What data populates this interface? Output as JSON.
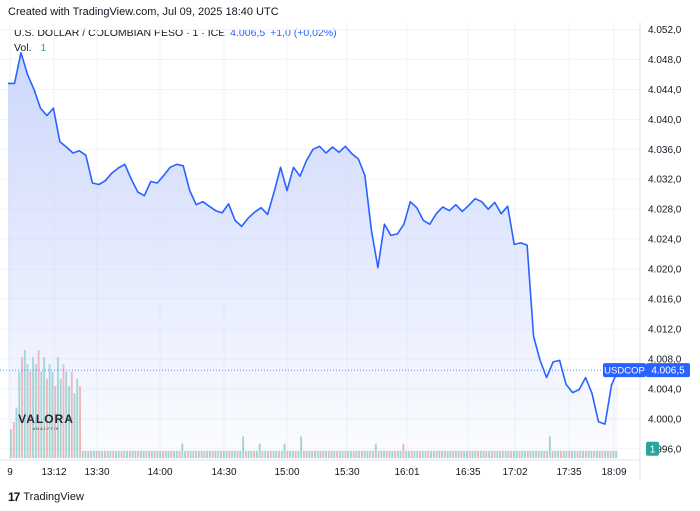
{
  "header": {
    "created": "Created with TradingView.com, Jul 09, 2025 18:40 UTC"
  },
  "legend": {
    "symbol": "U.S. DOLLAR / COLOMBIAN PESO · 1 · ICE",
    "value": "4.006,5",
    "change": "+1,0 (+0,02%)",
    "vol_label": "Vol.",
    "vol_value": "1"
  },
  "footer": {
    "brand": "TradingView"
  },
  "watermark": {
    "name": "VALORA",
    "tagline": "ANALYTIK"
  },
  "colors": {
    "line": "#2962ff",
    "volume_up": "#26a69a",
    "volume_down": "#ef5350",
    "area_top": "#c7d3fb"
  },
  "chart_data": {
    "type": "area",
    "symbol_label": "USDCOP",
    "last_price_label": "4.006,5",
    "volume_label": "1",
    "ylim": [
      3994.5,
      4053
    ],
    "y_ticks": [
      {
        "v": 4052,
        "label": "4.052,0"
      },
      {
        "v": 4048,
        "label": "4.048,0"
      },
      {
        "v": 4044,
        "label": "4.044,0"
      },
      {
        "v": 4040,
        "label": "4.040,0"
      },
      {
        "v": 4036,
        "label": "4.036,0"
      },
      {
        "v": 4032,
        "label": "4.032,0"
      },
      {
        "v": 4028,
        "label": "4.028,0"
      },
      {
        "v": 4024,
        "label": "4.024,0"
      },
      {
        "v": 4020,
        "label": "4.020,0"
      },
      {
        "v": 4016,
        "label": "4.016,0"
      },
      {
        "v": 4012,
        "label": "4.012,0"
      },
      {
        "v": 4008,
        "label": "4.008,0"
      },
      {
        "v": 4004,
        "label": "4.004,0"
      },
      {
        "v": 4000,
        "label": "4.000,0"
      },
      {
        "v": 3996,
        "label": "3.996,0"
      }
    ],
    "x_ticks": [
      "9",
      "13:12",
      "13:30",
      "14:00",
      "14:30",
      "15:00",
      "15:30",
      "16:01",
      "16:35",
      "17:02",
      "17:35",
      "18:09"
    ],
    "series": [
      {
        "values": [
          4044.8,
          4044.8,
          4048.9,
          4046,
          4044,
          4041.5,
          4040.5,
          4041.5,
          4037,
          4036.3,
          4035.5,
          4035.8,
          4035.2,
          4031.5,
          4031.3,
          4031.8,
          4032.8,
          4033.5,
          4034,
          4032,
          4030.3,
          4029.8,
          4031.7,
          4031.5,
          4032.5,
          4033.6,
          4034,
          4033.8,
          4030.5,
          4028.6,
          4029,
          4028.4,
          4027.8,
          4027.5,
          4028.7,
          4026.5,
          4025.7,
          4026.8,
          4027.6,
          4028.2,
          4027.3,
          4030.3,
          4033.6,
          4030.5,
          4033.6,
          4032.4,
          4034.5,
          4036,
          4036.4,
          4035.5,
          4036.3,
          4035.6,
          4036.4,
          4035.4,
          4034.7,
          4032.5,
          4025.2,
          4020.2,
          4026,
          4024.5,
          4024.7,
          4026,
          4029,
          4028.2,
          4026.5,
          4026,
          4027.4,
          4028.3,
          4027.8,
          4028.6,
          4027.7,
          4028.5,
          4029.4,
          4029,
          4028,
          4028.9,
          4027.4,
          4028.4,
          4023.3,
          4023.5,
          4023.2,
          4011,
          4007.8,
          4005.5,
          4007.6,
          4007.8,
          4004.6,
          4003.5,
          4003.9,
          4005.5,
          4003.4,
          3999.6,
          3999.3,
          4004.5,
          4006.5
        ]
      }
    ],
    "volume": {
      "max": 15,
      "values": [
        4,
        5,
        7,
        12,
        14,
        15,
        13,
        12,
        14,
        13,
        15,
        12,
        14,
        11,
        13,
        12,
        10,
        14,
        11,
        13,
        12,
        10,
        12,
        9,
        11,
        10,
        1,
        1,
        1,
        1,
        1,
        1,
        1,
        1,
        1,
        1,
        1,
        1,
        1,
        1,
        1,
        1,
        1,
        1,
        1,
        1,
        1,
        1,
        1,
        1,
        1,
        1,
        1,
        1,
        1,
        1,
        1,
        1,
        1,
        1,
        1,
        1,
        2,
        1,
        1,
        1,
        1,
        1,
        1,
        1,
        1,
        1,
        1,
        1,
        1,
        1,
        1,
        1,
        1,
        1,
        1,
        1,
        1,
        1,
        3,
        1,
        1,
        1,
        1,
        1,
        2,
        1,
        1,
        1,
        1,
        1,
        1,
        1,
        1,
        2,
        1,
        1,
        1,
        1,
        1,
        3,
        1,
        1,
        1,
        1,
        1,
        1,
        1,
        1,
        1,
        1,
        1,
        1,
        1,
        1,
        1,
        1,
        1,
        1,
        1,
        1,
        1,
        1,
        1,
        1,
        1,
        1,
        2,
        1,
        1,
        1,
        1,
        1,
        1,
        1,
        1,
        1,
        2,
        1,
        1,
        1,
        1,
        1,
        1,
        1,
        1,
        1,
        1,
        1,
        1,
        1,
        1,
        1,
        1,
        1,
        1,
        1,
        1,
        1,
        1,
        1,
        1,
        1,
        1,
        1,
        1,
        1,
        1,
        1,
        1,
        1,
        1,
        1,
        1,
        1,
        1,
        1,
        1,
        1,
        1,
        1,
        1,
        1,
        1,
        1,
        1,
        1,
        1,
        1,
        1,
        3,
        1,
        1,
        1,
        1,
        1,
        1,
        1,
        1,
        1,
        1,
        1,
        1,
        1,
        1,
        1,
        1,
        1,
        1,
        1,
        1,
        1,
        1,
        1,
        1
      ]
    }
  }
}
